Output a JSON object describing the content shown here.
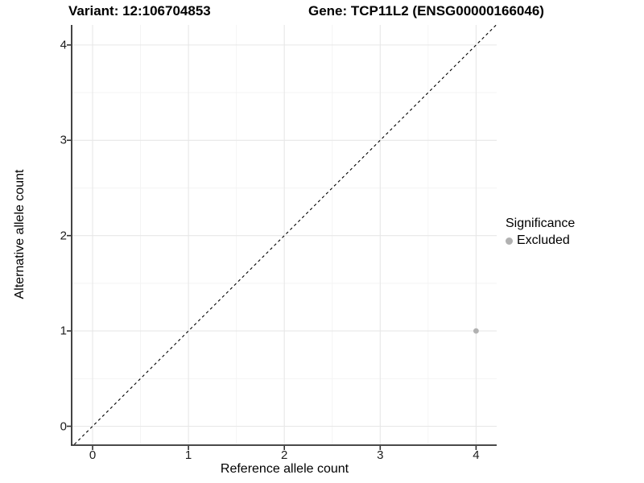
{
  "titles": {
    "variant": "Variant: 12:106704853",
    "gene": "Gene: TCP11L2 (ENSG00000166046)"
  },
  "x_axis": {
    "label": "Reference allele count"
  },
  "y_axis": {
    "label": "Alternative allele count"
  },
  "legend": {
    "title": "Significance",
    "items": [
      {
        "label": "Excluded",
        "color": "#b1b1b1"
      }
    ]
  },
  "colors": {
    "background": "#ffffff",
    "grid_major": "#e7e7e7",
    "grid_minor": "#f3f3f3",
    "axis": "#303030",
    "reference_line": "#000000",
    "point": "#b1b1b1",
    "text": "#000000"
  },
  "chart_data": {
    "type": "scatter",
    "title": "Variant: 12:106704853 | Gene: TCP11L2 (ENSG00000166046)",
    "xlabel": "Reference allele count",
    "ylabel": "Alternative allele count",
    "xlim": [
      -0.21,
      4.215
    ],
    "ylim": [
      -0.19,
      4.21
    ],
    "x_ticks": [
      0,
      1,
      2,
      3,
      4
    ],
    "y_ticks": [
      0,
      1,
      2,
      3,
      4
    ],
    "grid": "major+minor",
    "legend_position": "right",
    "series": [
      {
        "name": "Excluded",
        "color": "#b1b1b1",
        "points": [
          {
            "x": 4,
            "y": 1
          }
        ]
      }
    ],
    "reference_line": {
      "type": "identity y=x",
      "style": "dashed",
      "color": "#000000"
    }
  }
}
